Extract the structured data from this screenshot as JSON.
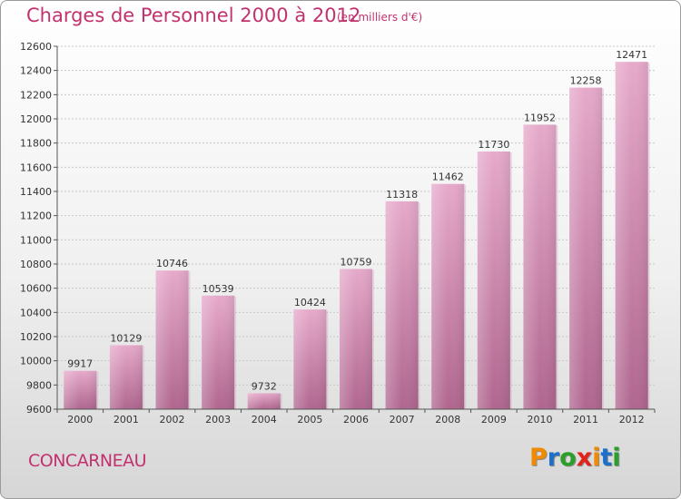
{
  "header": {
    "title": "Charges de Personnel 2000 à 2012",
    "subtitle": "(en milliers d'€)"
  },
  "footer": {
    "location": "CONCARNEAU",
    "brand": {
      "letters": [
        "P",
        "r",
        "o",
        "x",
        "i",
        "t",
        "i"
      ],
      "colors": [
        "#f08a00",
        "#1e6fc9",
        "#2aa02a",
        "#e2231a",
        "#f08a00",
        "#1e6fc9",
        "#2aa02a"
      ]
    }
  },
  "chart_data": {
    "type": "bar",
    "categories": [
      "2000",
      "2001",
      "2002",
      "2003",
      "2004",
      "2005",
      "2006",
      "2007",
      "2008",
      "2009",
      "2010",
      "2011",
      "2012"
    ],
    "values": [
      9917,
      10129,
      10746,
      10539,
      9732,
      10424,
      10759,
      11318,
      11462,
      11730,
      11952,
      12258,
      12471
    ],
    "ylim": [
      9600,
      12600
    ],
    "yticks": [
      9600,
      9800,
      10000,
      10200,
      10400,
      10600,
      10800,
      11000,
      11200,
      11400,
      11600,
      11800,
      12000,
      12200,
      12400,
      12600
    ],
    "grid": true,
    "bar_color": "#d98cb5",
    "title": "Charges de Personnel 2000 à 2012",
    "xlabel": "",
    "ylabel": ""
  }
}
